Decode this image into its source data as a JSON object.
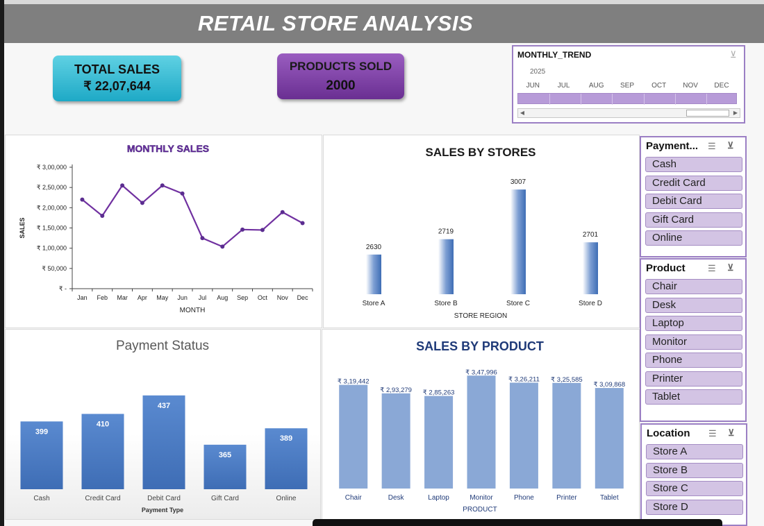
{
  "title": "RETAIL STORE ANALYSIS",
  "kpis": {
    "total_sales": {
      "label": "TOTAL SALES",
      "value": "₹ 22,07,644"
    },
    "products_sold": {
      "label": "PRODUCTS SOLD",
      "value": "2000"
    }
  },
  "timeline": {
    "title": "MONTHLY_TREND",
    "year": "2025",
    "months": [
      "JUN",
      "JUL",
      "AUG",
      "SEP",
      "OCT",
      "NOV",
      "DEC"
    ]
  },
  "slicers": {
    "payment": {
      "header": "Payment...",
      "items": [
        "Cash",
        "Credit Card",
        "Debit Card",
        "Gift Card",
        "Online"
      ]
    },
    "product": {
      "header": "Product",
      "items": [
        "Chair",
        "Desk",
        "Laptop",
        "Monitor",
        "Phone",
        "Printer",
        "Tablet"
      ]
    },
    "location": {
      "header": "Location",
      "items": [
        "Store A",
        "Store B",
        "Store C",
        "Store D"
      ]
    }
  },
  "colors": {
    "banner": "#7f7f7f",
    "line": "#7030a0",
    "bar_blue": "#4a7cc0",
    "bar_light": "#8aa8d6",
    "slicer_item": "#d3c4e4",
    "slicer_border": "#9b7fc4",
    "kpi_teal": "#2fbcd6",
    "kpi_purple": "#7b3fa5"
  },
  "chart_data": [
    {
      "type": "line",
      "title": "MONTHLY SALES",
      "xlabel": "MONTH",
      "ylabel": "SALES",
      "categories": [
        "Jan",
        "Feb",
        "Mar",
        "Apr",
        "May",
        "Jun",
        "Jul",
        "Aug",
        "Sep",
        "Oct",
        "Nov",
        "Dec"
      ],
      "values": [
        220000,
        180000,
        255000,
        212000,
        255000,
        235000,
        125000,
        104000,
        146000,
        145000,
        189000,
        162000
      ],
      "ylim": [
        0,
        300000
      ],
      "yticks": [
        "₹ 3,00,000",
        "₹ 2,50,000",
        "₹ 2,00,000",
        "₹ 1,50,000",
        "₹ 1,00,000",
        "₹ 50,000",
        "₹ -"
      ],
      "grid": false
    },
    {
      "type": "bar",
      "title": "SALES BY STORES",
      "xlabel": "STORE REGION",
      "categories": [
        "Store A",
        "Store B",
        "Store C",
        "Store D"
      ],
      "values": [
        2630,
        2719,
        3007,
        2701
      ],
      "labels": [
        "2630",
        "2719",
        "3007",
        "2701"
      ],
      "ylim": [
        2400,
        3100
      ]
    },
    {
      "type": "bar",
      "title": "Payment Status",
      "xlabel": "Payment Type",
      "categories": [
        "Cash",
        "Credit Card",
        "Debit Card",
        "Gift Card",
        "Online"
      ],
      "values": [
        399,
        410,
        437,
        365,
        389
      ],
      "labels": [
        "399",
        "410",
        "437",
        "365",
        "389"
      ],
      "ylim": [
        300,
        450
      ]
    },
    {
      "type": "bar",
      "title": "SALES BY PRODUCT",
      "xlabel": "PRODUCT",
      "categories": [
        "Chair",
        "Desk",
        "Laptop",
        "Monitor",
        "Phone",
        "Printer",
        "Tablet"
      ],
      "values": [
        319442,
        293279,
        285263,
        347996,
        326211,
        325585,
        309868
      ],
      "labels": [
        "₹ 3,19,442",
        "₹ 2,93,279",
        "₹ 2,85,263",
        "₹ 3,47,996",
        "₹ 3,26,211",
        "₹ 3,25,585",
        "₹ 3,09,868"
      ],
      "ylim": [
        0,
        355000
      ]
    }
  ]
}
